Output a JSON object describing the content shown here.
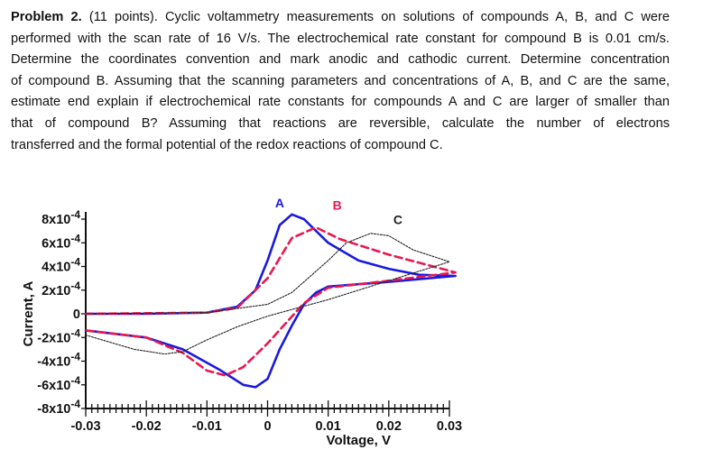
{
  "problem": {
    "label": "Problem 2.",
    "lines": [
      " (11 points). Cyclic voltammetry measurements on solutions of compounds A, B, and C were",
      "performed with the scan rate of 16 V/s. The electrochemical rate constant for compound B is 0.01 cm/s.",
      "Determine the coordinates convention and mark anodic and cathodic current. Determine concentration",
      "of compound B. Assuming that the scanning parameters and concentrations of A, B, and C are the same,",
      "estimate end explain if electrochemical rate constants for compounds A and C are larger of smaller than",
      "that of compound B? Assuming that reactions are reversible, calculate the number of electrons",
      "transferred and the formal potential of the redox reactions of compound C."
    ]
  },
  "chart_data": {
    "type": "line",
    "xlabel": "Voltage, V",
    "ylabel": "Current, A",
    "xlim": [
      -0.03,
      0.03
    ],
    "ylim": [
      -0.0008,
      0.0008
    ],
    "xticks": [
      "-0.03",
      "-0.02",
      "-0.01",
      "0",
      "0.01",
      "0.02",
      "0.03"
    ],
    "xtick_values": [
      -0.03,
      -0.02,
      -0.01,
      0,
      0.01,
      0.02,
      0.03
    ],
    "yticks": [
      {
        "value": 0.0008,
        "base": "8x10",
        "exp": "-4"
      },
      {
        "value": 0.0006,
        "base": "6x10",
        "exp": "-4"
      },
      {
        "value": 0.0004,
        "base": "4x10",
        "exp": "-4"
      },
      {
        "value": 0.0002,
        "base": "2x10",
        "exp": "-4"
      },
      {
        "value": 0,
        "base": "0",
        "exp": ""
      },
      {
        "value": -0.0002,
        "base": "-2x10",
        "exp": "-4"
      },
      {
        "value": -0.0004,
        "base": "-4x10",
        "exp": "-4"
      },
      {
        "value": -0.0006,
        "base": "-6x10",
        "exp": "-4"
      },
      {
        "value": -0.0008,
        "base": "-8x10",
        "exp": "-4"
      }
    ],
    "grid": false,
    "series": [
      {
        "name": "A",
        "color": "#1a1adc",
        "style": "solid",
        "points": [
          [
            -0.03,
            0
          ],
          [
            -0.02,
            0
          ],
          [
            -0.01,
            1e-05
          ],
          [
            -0.005,
            6e-05
          ],
          [
            -0.002,
            0.0002
          ],
          [
            0,
            0.00045
          ],
          [
            0.002,
            0.00075
          ],
          [
            0.004,
            0.00084
          ],
          [
            0.006,
            0.0008
          ],
          [
            0.01,
            0.0006
          ],
          [
            0.015,
            0.00045
          ],
          [
            0.02,
            0.00038
          ],
          [
            0.025,
            0.00033
          ],
          [
            0.031,
            0.00032
          ],
          [
            0.02,
            0.00027
          ],
          [
            0.01,
            0.00023
          ],
          [
            0.008,
            0.00018
          ],
          [
            0.006,
            8e-05
          ],
          [
            0.004,
            -0.0001
          ],
          [
            0.002,
            -0.0003
          ],
          [
            0,
            -0.00055
          ],
          [
            -0.002,
            -0.00062
          ],
          [
            -0.004,
            -0.0006
          ],
          [
            -0.008,
            -0.00047
          ],
          [
            -0.014,
            -0.0003
          ],
          [
            -0.02,
            -0.0002
          ],
          [
            -0.03,
            -0.00014
          ]
        ]
      },
      {
        "name": "B",
        "color": "#e8174f",
        "style": "dashed",
        "points": [
          [
            -0.03,
            0
          ],
          [
            -0.01,
            1e-05
          ],
          [
            -0.005,
            5e-05
          ],
          [
            0,
            0.0003
          ],
          [
            0.004,
            0.00064
          ],
          [
            0.008,
            0.00073
          ],
          [
            0.012,
            0.00063
          ],
          [
            0.02,
            0.0005
          ],
          [
            0.031,
            0.00035
          ],
          [
            0.02,
            0.00028
          ],
          [
            0.01,
            0.00022
          ],
          [
            0.006,
            9e-05
          ],
          [
            0,
            -0.00025
          ],
          [
            -0.004,
            -0.00045
          ],
          [
            -0.007,
            -0.00052
          ],
          [
            -0.01,
            -0.00048
          ],
          [
            -0.014,
            -0.00033
          ],
          [
            -0.02,
            -0.0002
          ],
          [
            -0.03,
            -0.00014
          ]
        ]
      },
      {
        "name": "C",
        "color": "#222222",
        "style": "dotted",
        "points": [
          [
            -0.03,
            0
          ],
          [
            -0.01,
            1e-05
          ],
          [
            0,
            8e-05
          ],
          [
            0.004,
            0.00018
          ],
          [
            0.01,
            0.00045
          ],
          [
            0.013,
            0.0006
          ],
          [
            0.017,
            0.00068
          ],
          [
            0.02,
            0.00066
          ],
          [
            0.024,
            0.00054
          ],
          [
            0.03,
            0.00044
          ],
          [
            0.02,
            0.00028
          ],
          [
            0.01,
            0.00012
          ],
          [
            0.005,
            5e-05
          ],
          [
            0,
            -2e-05
          ],
          [
            -0.005,
            -0.00011
          ],
          [
            -0.01,
            -0.00022
          ],
          [
            -0.014,
            -0.00032
          ],
          [
            -0.017,
            -0.00034
          ],
          [
            -0.022,
            -0.0003
          ],
          [
            -0.03,
            -0.00018
          ]
        ]
      }
    ]
  }
}
